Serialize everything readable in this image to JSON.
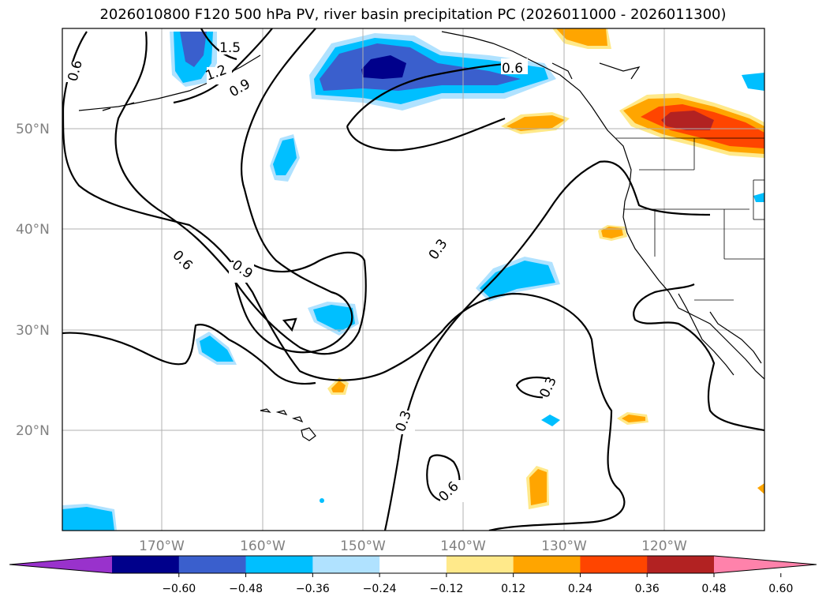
{
  "title": "2026010800 F120 500 hPa PV, river basin precipitation PC (2026011000 - 2026011300)",
  "lat_labels": [
    "50°N",
    "40°N",
    "30°N",
    "20°N"
  ],
  "lon_labels": [
    "170°W",
    "160°W",
    "150°W",
    "140°W",
    "130°W",
    "120°W"
  ],
  "contour_levels": [
    "0.3",
    "0.6",
    "0.9",
    "1.2",
    "1.5"
  ],
  "colorbar": {
    "colors": [
      "#9932cc",
      "#00008b",
      "#3a5fcd",
      "#00bfff",
      "#b0e2ff",
      "#ffffff",
      "#ffe98a",
      "#ffa500",
      "#ff4500",
      "#b22222",
      "#ff82ab"
    ],
    "ticks": [
      "−0.60",
      "−0.48",
      "−0.36",
      "−0.24",
      "−0.12",
      "0.12",
      "0.24",
      "0.36",
      "0.48",
      "0.60"
    ]
  }
}
